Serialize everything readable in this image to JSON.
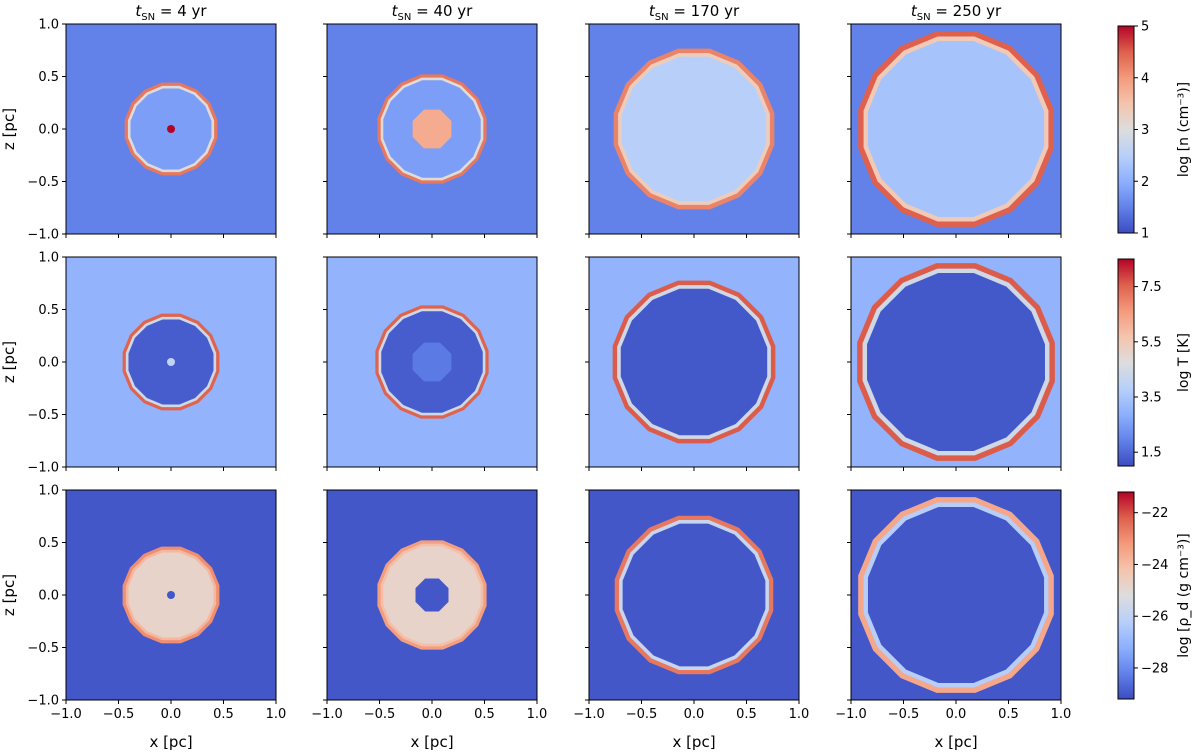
{
  "chart_data": {
    "type": "heatmap",
    "grid": {
      "rows": 3,
      "cols": 4
    },
    "columns": [
      {
        "prefix": "t",
        "subscript": "SN",
        "suffix": " = 4 yr",
        "t_sn": 4
      },
      {
        "prefix": "t",
        "subscript": "SN",
        "suffix": " = 40 yr",
        "t_sn": 40
      },
      {
        "prefix": "t",
        "subscript": "SN",
        "suffix": " = 170 yr",
        "t_sn": 170
      },
      {
        "prefix": "t",
        "subscript": "SN",
        "suffix": " = 250 yr",
        "t_sn": 250
      }
    ],
    "xlabel": "x [pc]",
    "ylabel": "z [pc]",
    "xlim": [
      -1.0,
      1.0
    ],
    "ylim": [
      -1.0,
      1.0
    ],
    "xticks": [
      "−1.0",
      "−0.5",
      "0.0",
      "0.5",
      "1.0"
    ],
    "yticks": [
      "−1.0",
      "−0.5",
      "0.0",
      "0.5",
      "1.0"
    ],
    "rows": [
      {
        "quantity": "number density",
        "colorbar_label": "log [n (cm⁻³)]",
        "colorbar_ticks": [
          "1",
          "2",
          "3",
          "4",
          "5"
        ],
        "clim": [
          1,
          5
        ],
        "background_value": 1.5,
        "shells": [
          {
            "radius": 0.45,
            "inner_value": 1.8,
            "shell_value": 4.3,
            "core_radius": 0.02,
            "core_value": 5.0
          },
          {
            "radius": 0.53,
            "inner_value": 1.8,
            "shell_value": 4.3,
            "core_radius": 0.2,
            "core_value": 3.8
          },
          {
            "radius": 0.78,
            "inner_value": 2.5,
            "shell_value": 4.2,
            "core_radius": 0,
            "core_value": 0
          },
          {
            "radius": 0.95,
            "inner_value": 2.3,
            "shell_value": 4.5,
            "core_radius": 0,
            "core_value": 0
          }
        ]
      },
      {
        "quantity": "temperature",
        "colorbar_label": "log T [K]",
        "colorbar_ticks": [
          "1.5",
          "3.5",
          "5.5",
          "7.5"
        ],
        "clim": [
          1.0,
          8.5
        ],
        "background_value": 3.0,
        "shells": [
          {
            "radius": 0.47,
            "inner_value": 1.3,
            "shell_value": 7.5,
            "core_radius": 0.02,
            "core_value": 4.0
          },
          {
            "radius": 0.55,
            "inner_value": 1.3,
            "shell_value": 7.5,
            "core_radius": 0.2,
            "core_value": 1.8
          },
          {
            "radius": 0.79,
            "inner_value": 1.2,
            "shell_value": 7.6,
            "core_radius": 0,
            "core_value": 0
          },
          {
            "radius": 0.96,
            "inner_value": 1.2,
            "shell_value": 7.6,
            "core_radius": 0,
            "core_value": 0
          }
        ]
      },
      {
        "quantity": "dust density",
        "colorbar_label": "log [ρ_d (g cm⁻³)]",
        "colorbar_ticks": [
          "−28",
          "−26",
          "−24",
          "−22"
        ],
        "clim": [
          -29.2,
          -21.2
        ],
        "background_value": -29.0,
        "shells": [
          {
            "radius": 0.47,
            "inner_value": -24.8,
            "shell_value": -23.0,
            "core_radius": 0.02,
            "core_value": -29.0
          },
          {
            "radius": 0.53,
            "inner_value": -24.8,
            "shell_value": -23.3,
            "core_radius": 0.17,
            "core_value": -29.0
          },
          {
            "radius": 0.77,
            "inner_value": -29.0,
            "shell_value": -22.6,
            "core_radius": 0,
            "core_value": 0
          },
          {
            "radius": 0.95,
            "inner_value": -29.0,
            "shell_value": -23.5,
            "core_radius": 0,
            "core_value": 0
          }
        ]
      }
    ],
    "colormap": "coolwarm",
    "grid_lines": false
  }
}
